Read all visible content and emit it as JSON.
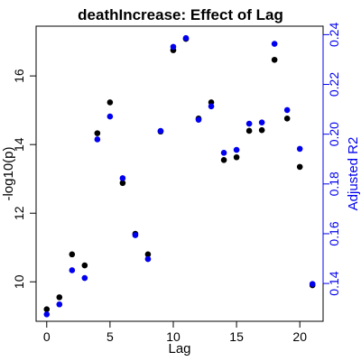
{
  "chart_data": {
    "type": "scatter",
    "title": "deathIncrease: Effect of Lag",
    "xlabel": "Lag",
    "ylabel": "-log10(p)",
    "y2label": "Adjusted R2",
    "xlim": [
      -0.84,
      21.84
    ],
    "ylim": [
      8.85,
      17.45
    ],
    "y2lim": [
      0.1248,
      0.2434
    ],
    "x_ticks": [
      0,
      5,
      10,
      15,
      20
    ],
    "y_ticks": [
      10,
      12,
      14,
      16
    ],
    "y2_ticks": [
      0.14,
      0.16,
      0.18,
      0.2,
      0.22,
      0.24
    ],
    "x": [
      0,
      1,
      2,
      3,
      4,
      5,
      6,
      7,
      8,
      9,
      10,
      11,
      12,
      13,
      14,
      15,
      16,
      17,
      18,
      19,
      20,
      21
    ],
    "series": [
      {
        "axis": "left",
        "color": "#000000",
        "values": [
          9.2,
          9.55,
          10.8,
          10.48,
          14.33,
          15.23,
          12.88,
          11.4,
          10.8,
          14.38,
          16.75,
          17.08,
          14.76,
          15.23,
          13.55,
          13.63,
          14.4,
          14.42,
          16.47,
          14.76,
          13.35,
          9.9
        ]
      },
      {
        "axis": "right",
        "color": "#0000ee",
        "values": [
          0.1276,
          0.1316,
          0.1453,
          0.1422,
          0.1979,
          0.2071,
          0.1823,
          0.1594,
          0.1498,
          0.2013,
          0.2351,
          0.2386,
          0.2058,
          0.2112,
          0.1925,
          0.1937,
          0.2042,
          0.2047,
          0.2363,
          0.2097,
          0.1941,
          0.1398
        ]
      }
    ],
    "grid": false,
    "legend": "none",
    "colors": {
      "left_axis": "#000000",
      "right_axis": "#0000ee"
    }
  }
}
